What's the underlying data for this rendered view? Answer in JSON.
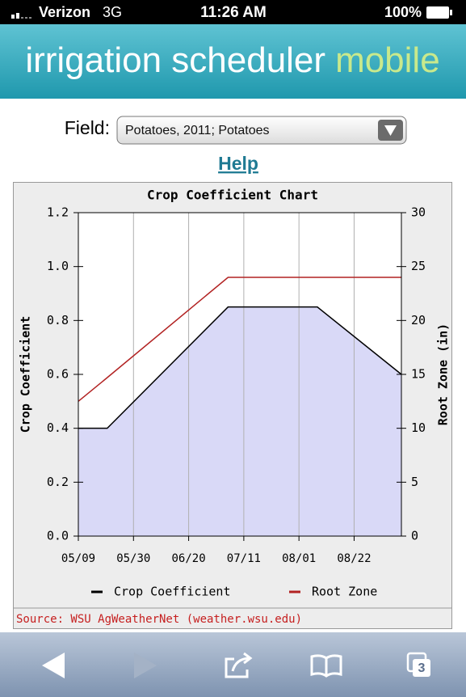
{
  "status_bar": {
    "carrier": "Verizon",
    "network": "3G",
    "time": "11:26 AM",
    "battery": "100%"
  },
  "header": {
    "title": "irrigation scheduler",
    "title_accent": "mobile"
  },
  "form": {
    "field_label": "Field:",
    "field_value": "Potatoes, 2011; Potatoes",
    "help_link": "Help"
  },
  "chart_data": {
    "type": "line",
    "title": "Crop Coefficient Chart",
    "ylabel": "Crop Coefficient",
    "y2label": "Root Zone (in)",
    "source": "Source: WSU AgWeatherNet (weather.wsu.edu)",
    "x": [
      "05/09",
      "05/20",
      "07/05",
      "08/08",
      "09/09"
    ],
    "xlim": [
      "05/09",
      "09/09"
    ],
    "xticks": [
      "05/09",
      "05/30",
      "06/20",
      "07/11",
      "08/01",
      "08/22"
    ],
    "ylim": [
      0,
      1.2
    ],
    "yticks": [
      {
        "value": 0,
        "label": "0.0"
      },
      0.2,
      0.4,
      0.6,
      0.8,
      {
        "value": 1,
        "label": "1.0"
      },
      1.2
    ],
    "y2lim": [
      0,
      30
    ],
    "y2ticks": [
      0,
      5,
      10,
      15,
      20,
      25,
      30
    ],
    "grid": true,
    "legend": "bottom",
    "fill_color": "#d9d9f7",
    "series": [
      {
        "name": "Crop Coefficient",
        "color": "#000000",
        "values": [
          0.4,
          0.4,
          0.85,
          0.85,
          0.6
        ]
      },
      {
        "name": "Root Zone",
        "color": "#b22222",
        "axis": "y2",
        "values": [
          12.5,
          14.7,
          24,
          24,
          24
        ]
      }
    ]
  },
  "toolbar": {
    "tabs_count": 3
  }
}
